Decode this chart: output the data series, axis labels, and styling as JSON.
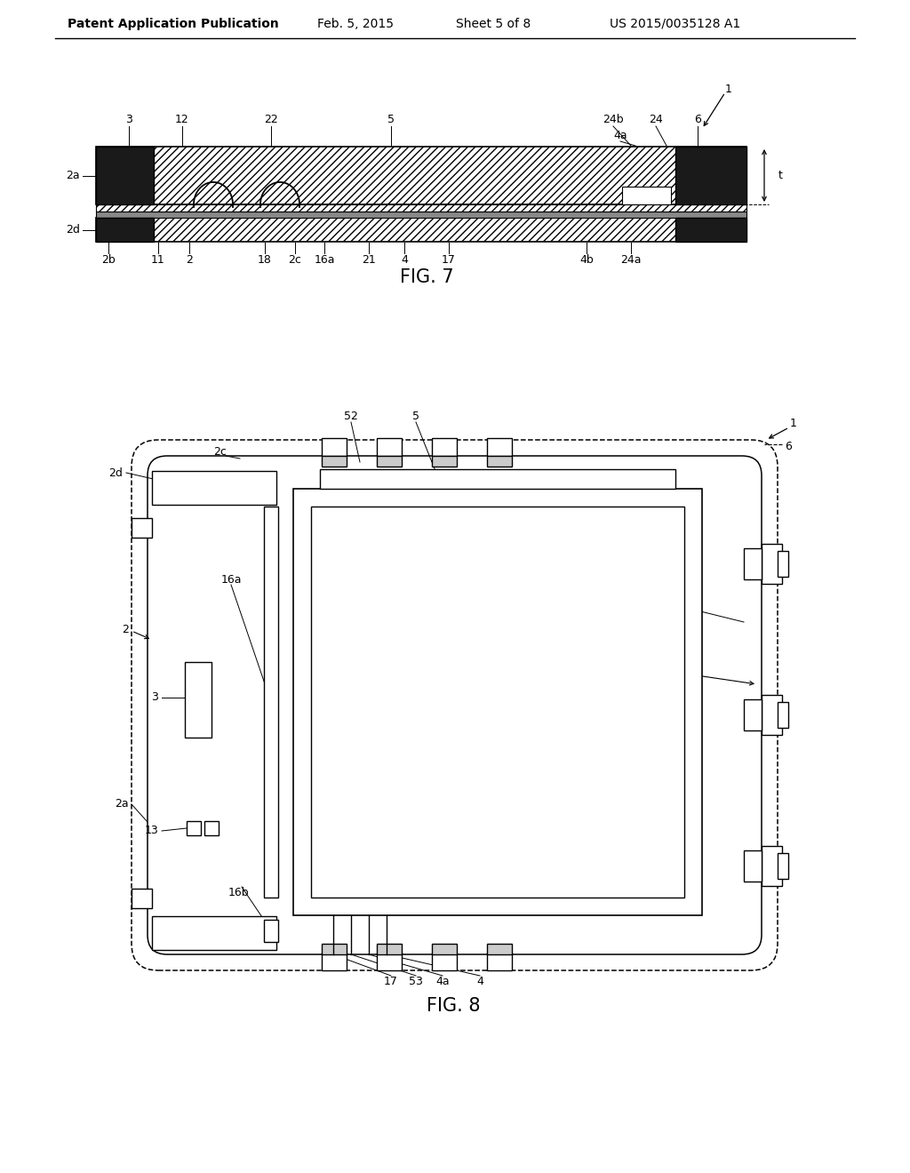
{
  "background_color": "#ffffff",
  "header_text": "Patent Application Publication",
  "header_date": "Feb. 5, 2015",
  "header_sheet": "Sheet 5 of 8",
  "header_patent": "US 2015/0035128 A1",
  "fig7_label": "FIG. 7",
  "fig8_label": "FIG. 8",
  "line_color": "#000000"
}
